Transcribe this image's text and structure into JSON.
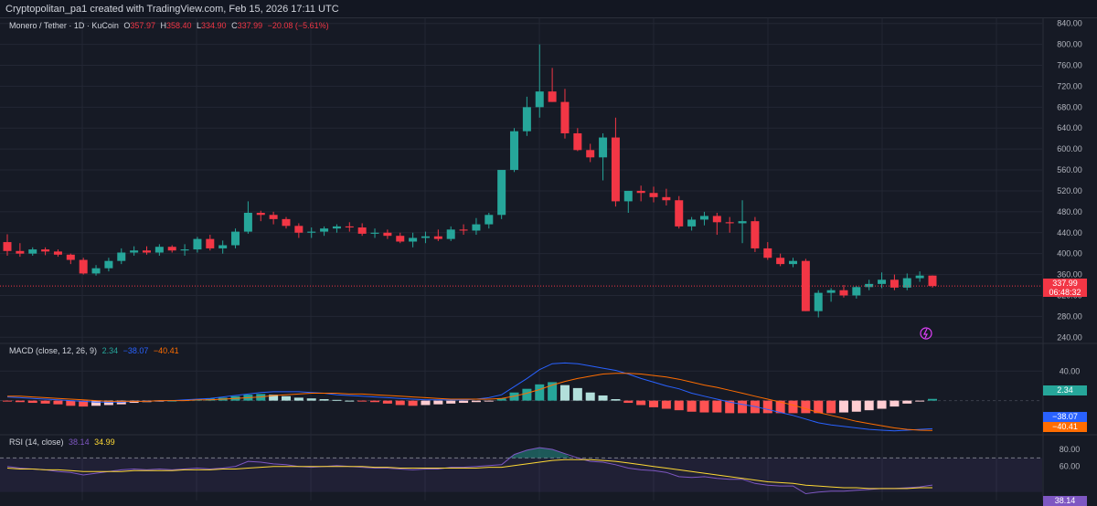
{
  "header": {
    "credit": "Cryptopolitan_pa1 created with TradingView.com, Feb 15, 2026 17:11 UTC"
  },
  "legend": {
    "symbol": "Monero / Tether · 1D · KuCoin",
    "o_label": "O",
    "o_val": "357.97",
    "h_label": "H",
    "h_val": "358.40",
    "l_label": "L",
    "l_val": "334.90",
    "c_label": "C",
    "c_val": "337.99",
    "change": "−20.08 (−5.61%)"
  },
  "price_tag": {
    "price": "337.99",
    "countdown": "06:48:32"
  },
  "macd": {
    "title": "MACD (close, 12, 26, 9)",
    "hist_val": "2.34",
    "macd_val": "−38.07",
    "signal_val": "−40.41",
    "tags": [
      "2.34",
      "−38.07",
      "−40.41"
    ]
  },
  "rsi": {
    "title": "RSI (14, close)",
    "rsi_val": "38.14",
    "ma_val": "34.99",
    "tag": "38.14"
  },
  "colors": {
    "up": "#26a69a",
    "down": "#f23645",
    "bg": "#161a25",
    "grid": "#232734",
    "macd": "#2962ff",
    "signal": "#ff6d00",
    "rsi": "#7e57c2",
    "rsi_ma": "#fdd835"
  },
  "chart_data": [
    {
      "type": "candlestick",
      "title": "Monero / Tether · 1D · KuCoin",
      "ylim": [
        230,
        850
      ],
      "yticks": [
        "840.00",
        "800.00",
        "760.00",
        "720.00",
        "680.00",
        "640.00",
        "600.00",
        "560.00",
        "520.00",
        "480.00",
        "440.00",
        "400.00",
        "360.00",
        "320.00",
        "280.00",
        "240.00"
      ],
      "candles": [
        [
          422,
          437,
          396,
          405
        ],
        [
          405,
          420,
          394,
          400
        ],
        [
          400,
          412,
          396,
          408
        ],
        [
          408,
          412,
          397,
          404
        ],
        [
          404,
          408,
          394,
          398
        ],
        [
          398,
          400,
          380,
          388
        ],
        [
          388,
          392,
          360,
          362
        ],
        [
          362,
          378,
          358,
          372
        ],
        [
          372,
          392,
          366,
          386
        ],
        [
          386,
          410,
          380,
          402
        ],
        [
          402,
          414,
          396,
          406
        ],
        [
          406,
          414,
          398,
          402
        ],
        [
          402,
          418,
          396,
          413
        ],
        [
          413,
          416,
          402,
          406
        ],
        [
          406,
          418,
          396,
          408
        ],
        [
          408,
          432,
          402,
          428
        ],
        [
          428,
          436,
          406,
          410
        ],
        [
          410,
          425,
          400,
          416
        ],
        [
          416,
          448,
          410,
          442
        ],
        [
          442,
          500,
          438,
          478
        ],
        [
          478,
          482,
          462,
          474
        ],
        [
          474,
          480,
          456,
          466
        ],
        [
          466,
          470,
          448,
          453
        ],
        [
          453,
          458,
          430,
          440
        ],
        [
          440,
          450,
          430,
          442
        ],
        [
          442,
          452,
          434,
          448
        ],
        [
          448,
          456,
          440,
          452
        ],
        [
          452,
          460,
          442,
          450
        ],
        [
          450,
          458,
          434,
          438
        ],
        [
          438,
          448,
          430,
          440
        ],
        [
          440,
          446,
          428,
          434
        ],
        [
          434,
          440,
          420,
          423
        ],
        [
          423,
          440,
          412,
          430
        ],
        [
          430,
          442,
          420,
          433
        ],
        [
          433,
          446,
          424,
          428
        ],
        [
          428,
          452,
          424,
          446
        ],
        [
          446,
          456,
          436,
          444
        ],
        [
          444,
          468,
          436,
          456
        ],
        [
          456,
          478,
          448,
          474
        ],
        [
          474,
          558,
          466,
          560
        ],
        [
          560,
          640,
          556,
          634
        ],
        [
          634,
          700,
          625,
          680
        ],
        [
          680,
          800,
          660,
          710
        ],
        [
          710,
          755,
          690,
          690
        ],
        [
          690,
          715,
          620,
          630
        ],
        [
          630,
          640,
          596,
          598
        ],
        [
          598,
          610,
          575,
          584
        ],
        [
          584,
          630,
          540,
          622
        ],
        [
          622,
          660,
          490,
          500
        ],
        [
          500,
          520,
          478,
          520
        ],
        [
          520,
          530,
          500,
          516
        ],
        [
          516,
          528,
          498,
          508
        ],
        [
          508,
          524,
          492,
          502
        ],
        [
          502,
          510,
          448,
          452
        ],
        [
          452,
          470,
          444,
          465
        ],
        [
          465,
          480,
          454,
          472
        ],
        [
          472,
          478,
          436,
          460
        ],
        [
          460,
          470,
          440,
          458
        ],
        [
          458,
          502,
          420,
          462
        ],
        [
          462,
          470,
          403,
          410
        ],
        [
          410,
          422,
          388,
          392
        ],
        [
          392,
          400,
          376,
          380
        ],
        [
          380,
          392,
          374,
          386
        ],
        [
          386,
          390,
          290,
          290
        ],
        [
          290,
          330,
          278,
          325
        ],
        [
          325,
          334,
          308,
          330
        ],
        [
          330,
          340,
          316,
          320
        ],
        [
          320,
          338,
          314,
          336
        ],
        [
          336,
          350,
          330,
          342
        ],
        [
          342,
          364,
          334,
          350
        ],
        [
          350,
          360,
          330,
          335
        ],
        [
          335,
          362,
          330,
          353
        ],
        [
          353,
          366,
          346,
          358
        ],
        [
          357.97,
          358.4,
          334.9,
          337.99
        ]
      ],
      "last_price": 337.99
    },
    {
      "type": "line",
      "title": "MACD (close, 12, 26, 9)",
      "ylim": [
        -45,
        75
      ],
      "yticks": [
        "40.00"
      ],
      "series": [
        {
          "name": "Histogram",
          "values": [
            -1,
            -2,
            -3,
            -4,
            -5,
            -7,
            -8,
            -7,
            -6,
            -5,
            -3,
            -2,
            -1,
            0,
            1,
            2,
            3,
            4,
            6,
            8,
            9,
            8,
            6,
            4,
            3,
            2,
            1,
            0,
            -1,
            -2,
            -4,
            -6,
            -7,
            -6,
            -5,
            -4,
            -3,
            -2,
            -1,
            3,
            11,
            16,
            22,
            25,
            21,
            17,
            11,
            7,
            2,
            -3,
            -6,
            -9,
            -11,
            -13,
            -15,
            -16,
            -16,
            -17,
            -17,
            -17,
            -17,
            -17,
            -17,
            -17,
            -17,
            -17,
            -16,
            -15,
            -13,
            -11,
            -8,
            -4,
            -1,
            2.34
          ]
        },
        {
          "name": "MACD",
          "values": [
            5,
            4,
            3,
            2,
            1,
            0,
            -1,
            -2,
            -2,
            -2,
            -1,
            -1,
            0,
            0,
            1,
            2,
            3,
            5,
            7,
            9,
            11,
            12,
            12,
            12,
            11,
            10,
            8,
            7,
            6,
            5,
            4,
            3,
            2,
            1,
            1,
            1,
            1,
            2,
            4,
            8,
            19,
            30,
            42,
            50,
            51,
            50,
            47,
            44,
            41,
            36,
            30,
            25,
            20,
            16,
            10,
            6,
            2,
            -2,
            -5,
            -8,
            -12,
            -16,
            -20,
            -25,
            -30,
            -33,
            -35,
            -37,
            -39,
            -40,
            -41,
            -40,
            -39,
            -38.07
          ]
        },
        {
          "name": "Signal",
          "values": [
            6,
            6,
            5,
            4,
            3,
            2,
            1,
            0,
            -1,
            -1,
            -1,
            -1,
            0,
            0,
            0,
            1,
            1,
            2,
            3,
            4,
            5,
            7,
            8,
            9,
            10,
            10,
            10,
            9,
            9,
            8,
            7,
            6,
            5,
            4,
            3,
            2,
            2,
            2,
            2,
            3,
            6,
            10,
            15,
            21,
            26,
            30,
            33,
            36,
            37,
            37,
            36,
            34,
            32,
            29,
            25,
            21,
            18,
            14,
            10,
            6,
            2,
            -2,
            -6,
            -11,
            -16,
            -20,
            -24,
            -28,
            -31,
            -34,
            -37,
            -39,
            -40,
            -40.41
          ]
        }
      ]
    },
    {
      "type": "line",
      "title": "RSI (14, close)",
      "ylim": [
        20,
        95
      ],
      "yticks": [
        "80.00",
        "60.00"
      ],
      "bands": [
        70,
        30
      ],
      "series": [
        {
          "name": "RSI",
          "values": [
            60,
            58,
            57,
            56,
            54,
            53,
            50,
            52,
            54,
            56,
            57,
            56,
            57,
            56,
            57,
            58,
            57,
            58,
            60,
            66,
            65,
            63,
            62,
            60,
            59,
            60,
            61,
            60,
            59,
            58,
            58,
            57,
            56,
            57,
            57,
            59,
            59,
            60,
            61,
            62,
            74,
            79,
            82,
            80,
            75,
            70,
            66,
            65,
            62,
            58,
            56,
            55,
            53,
            48,
            47,
            48,
            46,
            45,
            45,
            40,
            38,
            37,
            37,
            28,
            30,
            31,
            31,
            32,
            33,
            34,
            34,
            35,
            36,
            38.14
          ]
        },
        {
          "name": "RSI-based MA",
          "values": [
            58,
            57,
            57,
            56,
            56,
            55,
            54,
            54,
            54,
            54,
            55,
            55,
            55,
            55,
            56,
            56,
            56,
            57,
            57,
            58,
            59,
            60,
            60,
            60,
            60,
            60,
            60,
            60,
            60,
            59,
            59,
            58,
            58,
            58,
            58,
            58,
            58,
            58,
            59,
            59,
            61,
            63,
            65,
            67,
            68,
            68,
            68,
            67,
            66,
            64,
            62,
            60,
            58,
            56,
            54,
            52,
            50,
            48,
            46,
            44,
            42,
            41,
            40,
            38,
            37,
            36,
            35,
            35,
            34,
            34,
            34,
            34,
            35,
            34.99
          ]
        }
      ]
    }
  ]
}
